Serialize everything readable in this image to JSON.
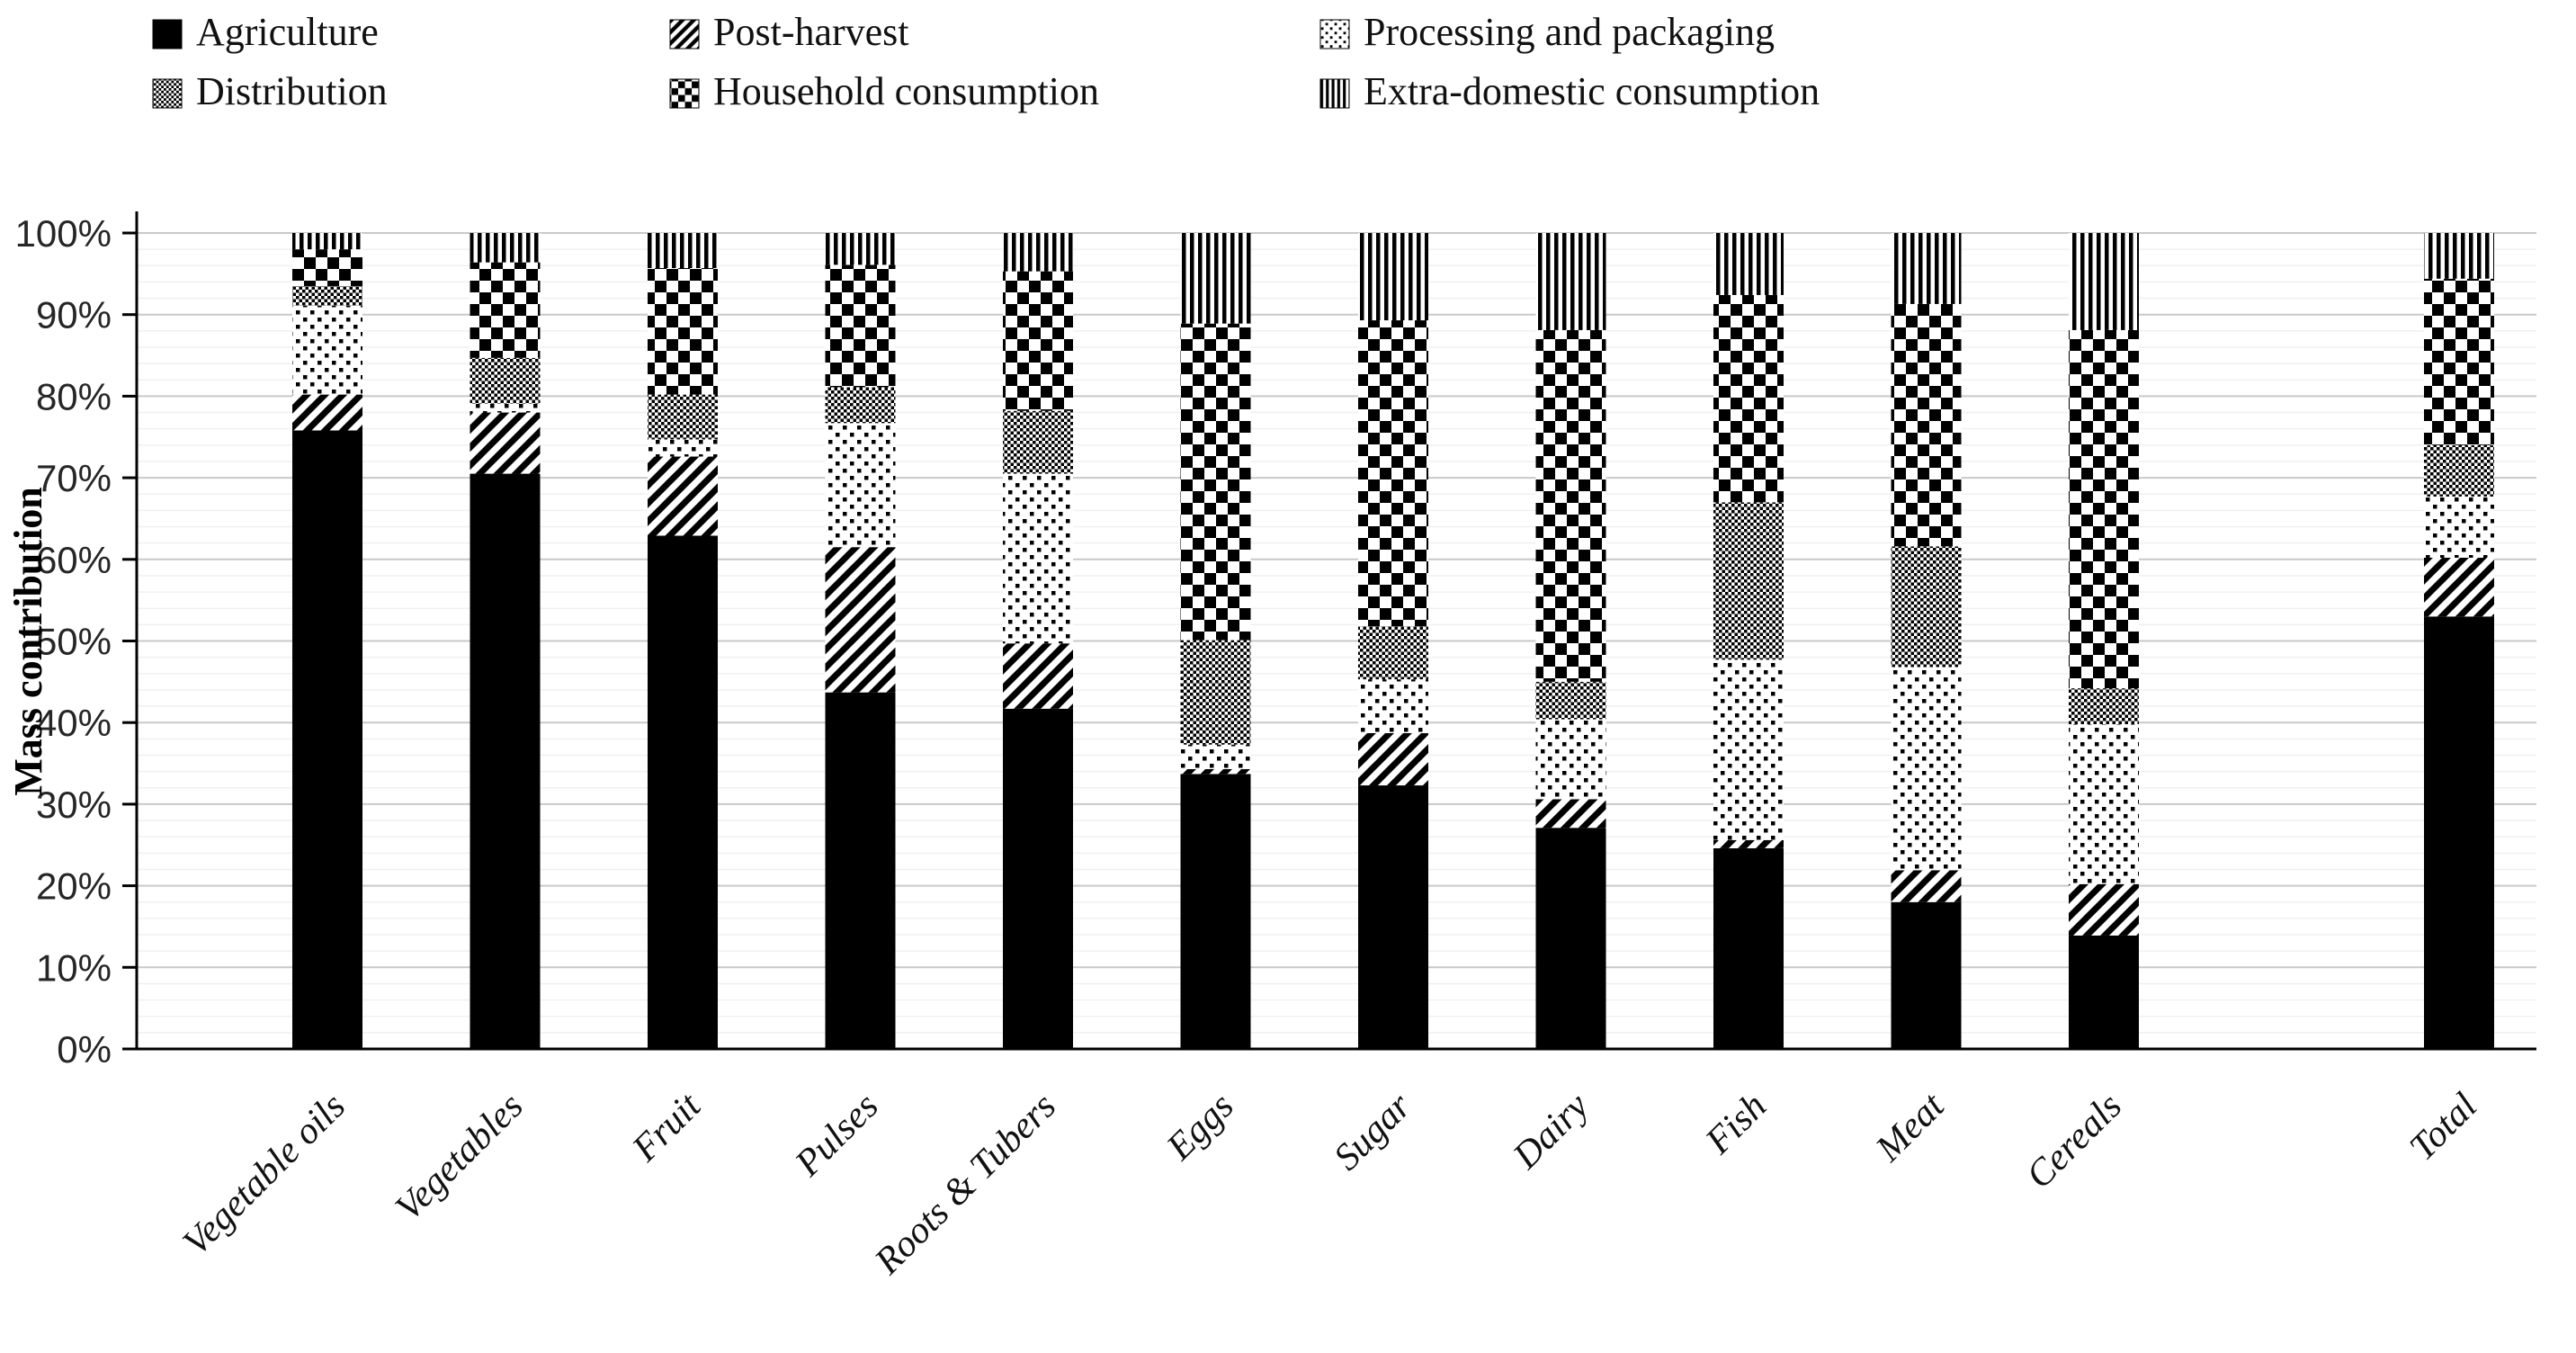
{
  "chart_data": {
    "type": "bar",
    "subtype": "100-percent-stacked-bar",
    "title": "",
    "ylabel": "Mass contribution",
    "xlabel": "",
    "ylim": [
      0,
      100
    ],
    "y_tick_labels": [
      "0%",
      "10%",
      "20%",
      "30%",
      "40%",
      "50%",
      "60%",
      "70%",
      "80%",
      "90%",
      "100%"
    ],
    "grid": "horizontal, minor every 2%, major every 10%",
    "legend_position": "top, 2 rows x 3 columns",
    "categories": [
      "Vegetable oils",
      "Vegetables",
      "Fruit",
      "Pulses",
      "Roots & Tubers",
      "Eggs",
      "Sugar",
      "Dairy",
      "Fish",
      "Meat",
      "Cereals",
      "Total"
    ],
    "total_bar_separated": true,
    "series": [
      {
        "name": "Agriculture",
        "pattern": "solid-black",
        "values": [
          75.8,
          70.5,
          62.9,
          43.7,
          41.7,
          33.7,
          32.3,
          27.1,
          24.6,
          18.0,
          13.9,
          53.0
        ]
      },
      {
        "name": "Post-harvest",
        "pattern": "diagonal-stripes",
        "values": [
          4.4,
          7.5,
          9.7,
          17.8,
          8.0,
          0.6,
          6.4,
          3.5,
          1.0,
          3.9,
          6.3,
          7.2
        ]
      },
      {
        "name": "Processing and packaging",
        "pattern": "sparse-dots",
        "values": [
          10.9,
          1.1,
          2.1,
          15.2,
          20.8,
          3.0,
          6.6,
          9.8,
          22.1,
          24.9,
          19.6,
          7.5
        ]
      },
      {
        "name": "Distribution",
        "pattern": "fine-gray-checker",
        "values": [
          2.4,
          5.6,
          5.5,
          4.4,
          7.7,
          12.8,
          6.5,
          4.6,
          19.3,
          14.8,
          4.4,
          6.3
        ]
      },
      {
        "name": "Household consumption",
        "pattern": "checkerboard",
        "values": [
          4.5,
          11.7,
          15.5,
          15.0,
          17.1,
          38.8,
          37.5,
          43.1,
          25.4,
          29.7,
          43.9,
          20.4
        ]
      },
      {
        "name": "Extra-domestic consumption",
        "pattern": "vertical-stripes",
        "values": [
          2.0,
          3.6,
          4.3,
          3.9,
          4.7,
          11.1,
          10.7,
          11.9,
          7.6,
          8.7,
          11.9,
          5.6
        ]
      }
    ]
  },
  "colors": {
    "background": "#ffffff",
    "bar_ink": "#000000",
    "grid_major": "#c9c9c9",
    "grid_minor": "#f0f0f0",
    "axis": "#000000",
    "text": "#1a1a1a"
  }
}
